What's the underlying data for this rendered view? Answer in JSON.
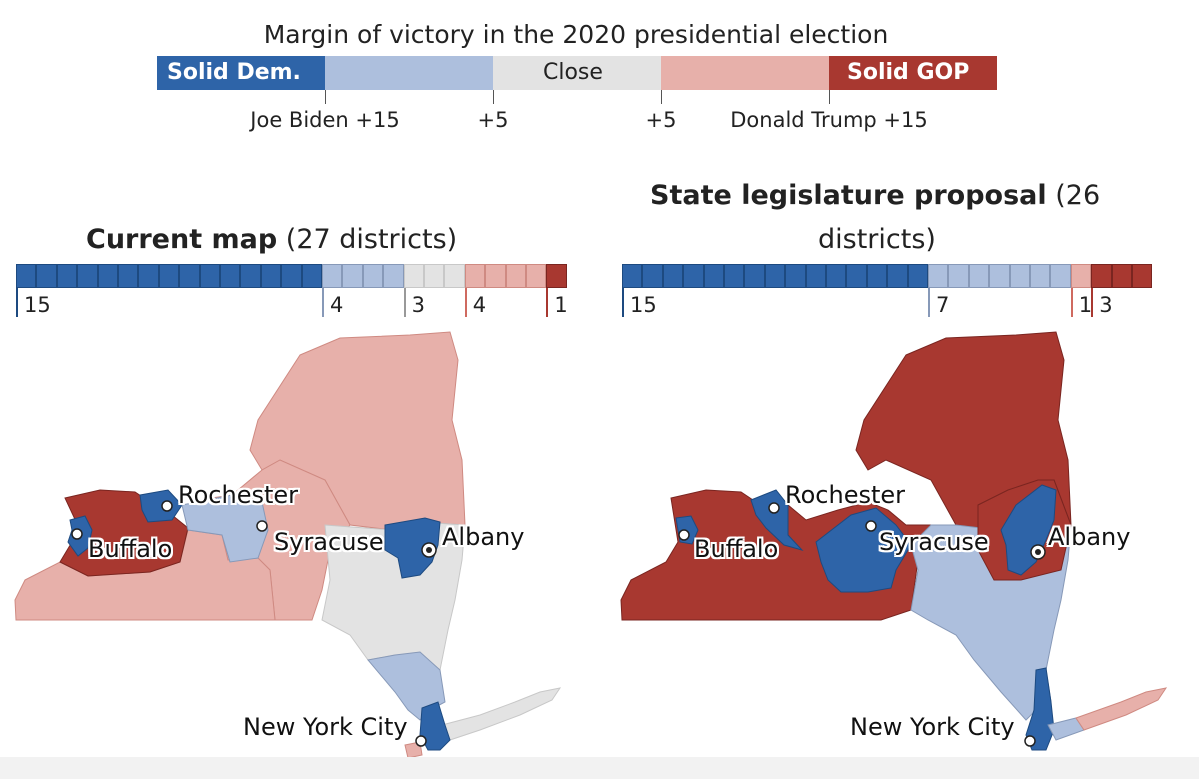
{
  "header": {
    "title": "Margin of victory in the 2020 presidential election"
  },
  "legend": {
    "segments": [
      {
        "key": "solid_dem",
        "label": "Solid Dem.",
        "color": "#2e64a8"
      },
      {
        "key": "lean_dem",
        "label": "",
        "color": "#adbfdd"
      },
      {
        "key": "close",
        "label": "Close",
        "color": "#e3e3e3"
      },
      {
        "key": "lean_gop",
        "label": "",
        "color": "#e7b0aa"
      },
      {
        "key": "solid_gop",
        "label": "Solid GOP",
        "color": "#a83830"
      }
    ],
    "ticks": [
      "Joe Biden +15",
      "+5",
      "+5",
      "Donald Trump +15"
    ]
  },
  "maps": [
    {
      "title_bold": "Current map",
      "title_rest": " (27 districts)",
      "counts": [
        {
          "category": "solid_dem",
          "value": 15,
          "label": "15"
        },
        {
          "category": "lean_dem",
          "value": 4,
          "label": "4"
        },
        {
          "category": "close",
          "value": 3,
          "label": "3"
        },
        {
          "category": "lean_gop",
          "value": 4,
          "label": "4"
        },
        {
          "category": "solid_gop",
          "value": 1,
          "label": "1"
        }
      ],
      "cities": [
        "Rochester",
        "Buffalo",
        "Syracuse",
        "Albany",
        "New York City"
      ]
    },
    {
      "title_bold": "State legislature proposal",
      "title_rest": " (26",
      "title_line2": "districts)",
      "counts": [
        {
          "category": "solid_dem",
          "value": 15,
          "label": "15"
        },
        {
          "category": "lean_dem",
          "value": 7,
          "label": "7"
        },
        {
          "category": "close",
          "value": 0,
          "label": ""
        },
        {
          "category": "lean_gop",
          "value": 1,
          "label": "1"
        },
        {
          "category": "solid_gop",
          "value": 3,
          "label": "3"
        }
      ],
      "cities": [
        "Rochester",
        "Buffalo",
        "Syracuse",
        "Albany",
        "New York City"
      ]
    }
  ]
}
